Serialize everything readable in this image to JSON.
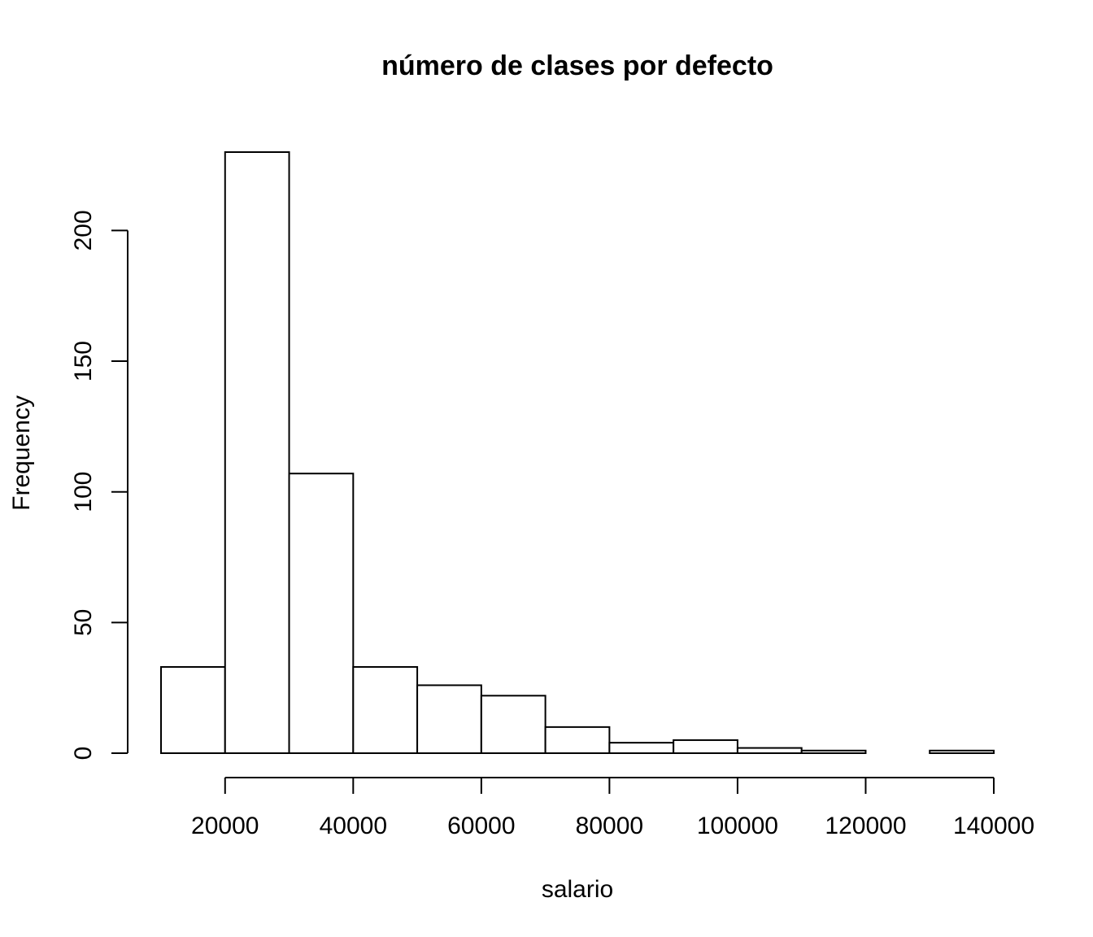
{
  "chart_data": {
    "type": "bar",
    "title": "número de clases por defecto",
    "xlabel": "salario",
    "ylabel": "Frequency",
    "bins": [
      {
        "from": 10000,
        "to": 20000,
        "count": 33
      },
      {
        "from": 20000,
        "to": 30000,
        "count": 230
      },
      {
        "from": 30000,
        "to": 40000,
        "count": 107
      },
      {
        "from": 40000,
        "to": 50000,
        "count": 33
      },
      {
        "from": 50000,
        "to": 60000,
        "count": 26
      },
      {
        "from": 60000,
        "to": 70000,
        "count": 22
      },
      {
        "from": 70000,
        "to": 80000,
        "count": 10
      },
      {
        "from": 80000,
        "to": 90000,
        "count": 4
      },
      {
        "from": 90000,
        "to": 100000,
        "count": 5
      },
      {
        "from": 100000,
        "to": 110000,
        "count": 2
      },
      {
        "from": 110000,
        "to": 120000,
        "count": 1
      },
      {
        "from": 120000,
        "to": 130000,
        "count": 0
      },
      {
        "from": 130000,
        "to": 140000,
        "count": 1
      }
    ],
    "xlim": [
      10000,
      140000
    ],
    "ylim": [
      0,
      230
    ],
    "x_ticks": [
      20000,
      40000,
      60000,
      80000,
      100000,
      120000,
      140000
    ],
    "x_tick_labels": [
      "20000",
      "40000",
      "60000",
      "80000",
      "100000",
      "120000",
      "140000"
    ],
    "y_ticks": [
      0,
      50,
      100,
      150,
      200
    ],
    "y_tick_labels": [
      "0",
      "50",
      "100",
      "150",
      "200"
    ],
    "grid": false,
    "legend": "none"
  }
}
